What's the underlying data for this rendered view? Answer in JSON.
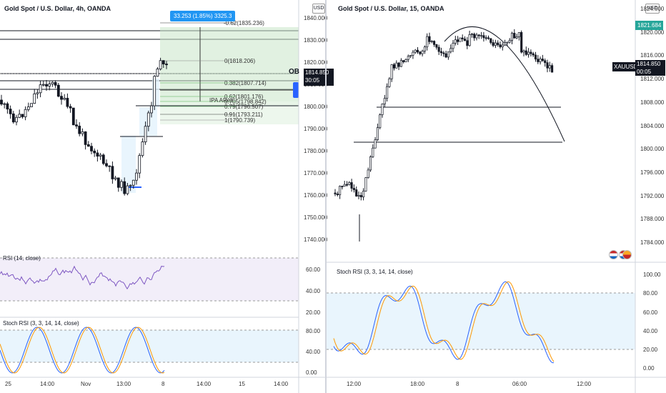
{
  "left": {
    "title": "Gold Spot / U.S. Dollar, 4h, OANDA",
    "currency": "USD",
    "price_axis": [
      "1840.000",
      "1830.000",
      "1820.000",
      "1810.000",
      "1800.000",
      "1790.000",
      "1780.000",
      "1770.000",
      "1760.000",
      "1750.000",
      "1740.000"
    ],
    "price_tag": {
      "price": "1814.850",
      "timer": "30:05"
    },
    "ob_label": "OB",
    "measure_label": "33.253 (1.85%) 3325.3",
    "fib_levels": [
      {
        "label": "-0.62(1835.236)",
        "color": "#333333"
      },
      {
        "label": "0(1818.206)",
        "color": "#888888"
      },
      {
        "label": "0.382(1807.714)",
        "color": "#4caf50"
      },
      {
        "label": "0.62(1801.176)",
        "color": "#4caf50"
      },
      {
        "label": "0.705(1798.842)",
        "color": "#4caf50"
      },
      {
        "label": "0.79(1796.507)",
        "color": "#4caf50"
      },
      {
        "label": "0.91(1793.211)",
        "color": "#333333"
      },
      {
        "label": "1(1790.739)",
        "color": "#888888"
      }
    ],
    "ipa_label": "IPA ARea",
    "rsi": {
      "title": "RSI (14, close)",
      "axis": [
        "60.00",
        "40.00",
        "20.00"
      ]
    },
    "stoch": {
      "title": "Stoch RSI (3, 3, 14, 14, close)",
      "axis": [
        "80.00",
        "40.00",
        "0.00"
      ]
    },
    "time_axis": [
      "25",
      "14:00",
      "Nov",
      "13:00",
      "8",
      "14:00",
      "15",
      "14:00"
    ]
  },
  "right": {
    "title": "Gold Spot / U.S. Dollar, 15, OANDA",
    "currency": "USD",
    "price_axis": [
      "1824.000",
      "1820.000",
      "1816.000",
      "1812.000",
      "1808.000",
      "1804.000",
      "1800.000",
      "1796.000",
      "1792.000",
      "1788.000",
      "1784.000"
    ],
    "high_tag": "1821.684",
    "symbol_tag": "XAUUSD",
    "price_tag": {
      "price": "1814.850",
      "timer": "00:05"
    },
    "stoch": {
      "title": "Stoch RSI (3, 3, 14, 14, close)",
      "axis": [
        "100.00",
        "80.00",
        "60.00",
        "40.00",
        "20.00",
        "0.00"
      ]
    },
    "time_axis": [
      "12:00",
      "18:00",
      "8",
      "06:00",
      "12:00"
    ]
  },
  "colors": {
    "up": "#26a69a",
    "candle": "#131722",
    "blue": "#2962ff",
    "orange": "#ff9800",
    "green_zone": "#c8e6c9",
    "stoch_band": "#e3f2fd",
    "rsi_band": "#ede7f6"
  }
}
